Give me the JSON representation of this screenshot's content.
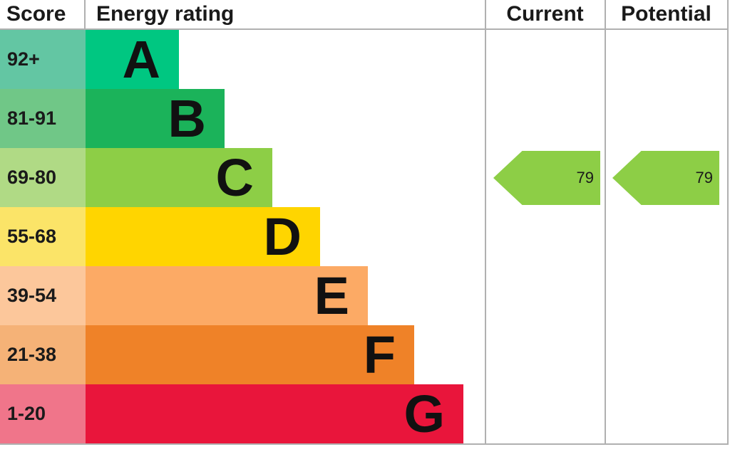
{
  "header": {
    "score": "Score",
    "rating": "Energy rating",
    "current": "Current",
    "potential": "Potential"
  },
  "bands": [
    {
      "score": "92+",
      "letter": "A",
      "bar_color": "#00c781",
      "score_color": "#63c6a3"
    },
    {
      "score": "81-91",
      "letter": "B",
      "bar_color": "#1bb35a",
      "score_color": "#70c787"
    },
    {
      "score": "69-80",
      "letter": "C",
      "bar_color": "#8dce46",
      "score_color": "#b0da85"
    },
    {
      "score": "55-68",
      "letter": "D",
      "bar_color": "#ffd500",
      "score_color": "#fbe468"
    },
    {
      "score": "39-54",
      "letter": "E",
      "bar_color": "#fcaa65",
      "score_color": "#fcc79b"
    },
    {
      "score": "21-38",
      "letter": "F",
      "bar_color": "#ef8228",
      "score_color": "#f5b277"
    },
    {
      "score": "1-20",
      "letter": "G",
      "bar_color": "#e9153b",
      "score_color": "#f0758a"
    }
  ],
  "current": {
    "value": "79",
    "band": "C",
    "color": "#8dce46"
  },
  "potential": {
    "value": "79",
    "band": "C",
    "color": "#8dce46"
  },
  "colors": {
    "grid_line": "#b0b0b0",
    "text": "#1a1a1a"
  },
  "chart_data": {
    "type": "bar",
    "title": "Energy rating",
    "categories": [
      "A",
      "B",
      "C",
      "D",
      "E",
      "F",
      "G"
    ],
    "band_score_ranges": [
      "92+",
      "81-91",
      "69-80",
      "55-68",
      "39-54",
      "21-38",
      "1-20"
    ],
    "band_colors": [
      "#00c781",
      "#1bb35a",
      "#8dce46",
      "#ffd500",
      "#fcaa65",
      "#ef8228",
      "#e9153b"
    ],
    "columns": [
      "Score",
      "Energy rating",
      "Current",
      "Potential"
    ],
    "current_rating": 79,
    "current_band": "C",
    "potential_rating": 79,
    "potential_band": "C",
    "score_range": [
      1,
      100
    ],
    "legend_position": "none",
    "grid": false
  }
}
